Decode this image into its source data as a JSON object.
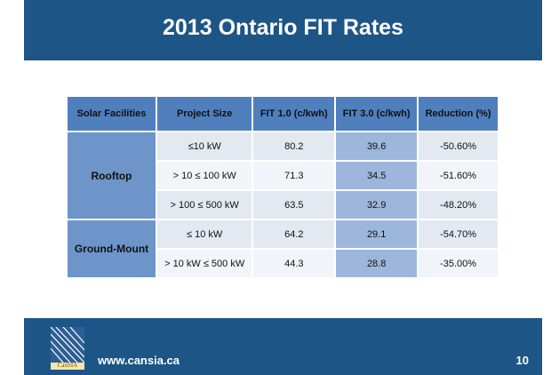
{
  "header": {
    "title": "2013 Ontario FIT Rates"
  },
  "table": {
    "columns": [
      "Solar Facilities",
      "Project Size",
      "FIT 1.0 (c/kwh)",
      "FIT 3.0 (c/kwh)",
      "Reduction (%)"
    ],
    "groups": [
      {
        "label": "Rooftop",
        "rows": [
          [
            "≤10 kW",
            "80.2",
            "39.6",
            "-50.60%"
          ],
          [
            "> 10 ≤ 100 kW",
            "71.3",
            "34.5",
            "-51.60%"
          ],
          [
            "> 100 ≤ 500 kW",
            "63.5",
            "32.9",
            "-48.20%"
          ]
        ]
      },
      {
        "label": "Ground-Mount",
        "rows": [
          [
            "≤ 10 kW",
            "64.2",
            "29.1",
            "-54.70%"
          ],
          [
            "> 10 kW  ≤ 500 kW",
            "44.3",
            "28.8",
            "-35.00%"
          ]
        ]
      }
    ]
  },
  "footer": {
    "logo_text": "CanSIA",
    "url": "www.cansia.ca",
    "page": "10"
  }
}
